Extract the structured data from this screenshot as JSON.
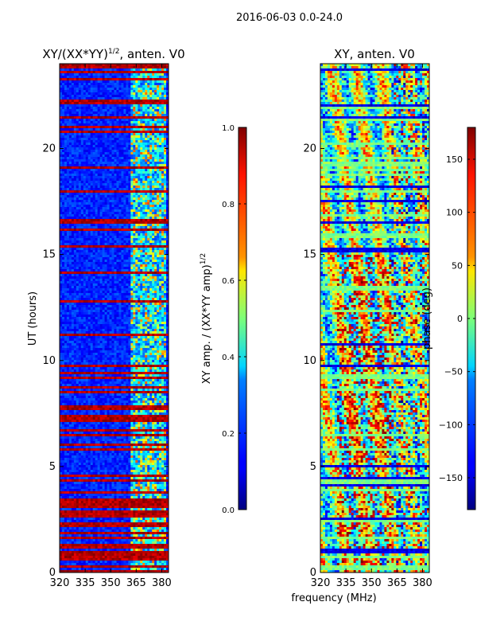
{
  "figure": {
    "suptitle": "2016-06-03 0.0-24.0",
    "xlabel_shared": "frequency (MHz)"
  },
  "chart_data": [
    {
      "type": "heatmap",
      "title": "XY/(XX*YY)^1/2, anten. V0",
      "title_main": "XY/(XX*YY)",
      "title_sup": "1/2",
      "title_tail": ", anten. V0",
      "xlabel": "",
      "ylabel": "UT (hours)",
      "xlim": [
        320,
        384
      ],
      "ylim": [
        0,
        24
      ],
      "xticks": [
        320,
        335,
        350,
        365,
        380
      ],
      "yticks": [
        0,
        5,
        10,
        15,
        20
      ],
      "colormap": "jet",
      "value_range": [
        0.0,
        1.0
      ],
      "notes": "mostly low amplitude (~0.1-0.2); high-amplitude horizontal bands at many times; bright region at 362-382 MHz",
      "colorbar": {
        "label": "XY amp. / (XX*YY amp)^1/2",
        "label_main": "XY amp. / (XX*YY amp)",
        "label_sup": "1/2",
        "ticks": [
          0.0,
          0.2,
          0.4,
          0.6,
          0.8,
          1.0
        ],
        "tick_labels": [
          "0.0",
          "0.2",
          "0.4",
          "0.6",
          "0.8",
          "1.0"
        ]
      }
    },
    {
      "type": "heatmap",
      "title": "XY, anten. V0",
      "xlabel": "frequency (MHz)",
      "ylabel": "",
      "xlim": [
        320,
        384
      ],
      "ylim": [
        0,
        24
      ],
      "xticks": [
        320,
        335,
        350,
        365,
        380
      ],
      "yticks": [
        0,
        5,
        10,
        15,
        20
      ],
      "colormap": "jet",
      "value_range": [
        -180,
        180
      ],
      "notes": "phase in degrees; noisy banded structure with striping across frequency",
      "colorbar": {
        "label": "phase (deg)",
        "ticks": [
          -150,
          -100,
          -50,
          0,
          50,
          100,
          150
        ],
        "tick_labels": [
          "−150",
          "−100",
          "−50",
          "0",
          "50",
          "100",
          "150"
        ]
      }
    }
  ],
  "colors": {
    "jet_low": "#00007f",
    "jet_high": "#7f0000",
    "axis": "#000000"
  }
}
